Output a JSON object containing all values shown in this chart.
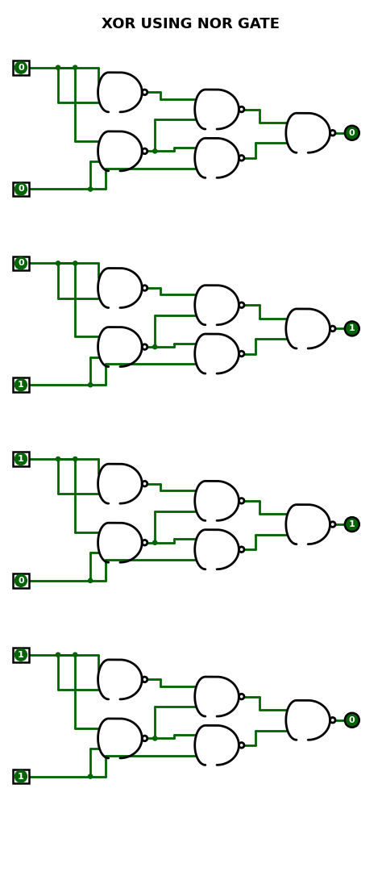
{
  "title": "XOR USING NOR GATE",
  "bg_color": "#ffffff",
  "line_color": "#006400",
  "gate_color": "#000000",
  "input_bg": "#006400",
  "input_text_color": "#ffffff",
  "output_bg": "#006400",
  "output_text_color": "#ffffff",
  "truth_table": [
    {
      "A": 0,
      "B": 0,
      "out": 0
    },
    {
      "A": 0,
      "B": 1,
      "out": 1
    },
    {
      "A": 1,
      "B": 0,
      "out": 1
    },
    {
      "A": 1,
      "B": 1,
      "out": 0
    }
  ],
  "fig_width": 4.74,
  "fig_height": 10.91,
  "dpi": 100,
  "lw": 2.0,
  "dot_r": 0.055,
  "bubble_r": 0.07,
  "gate_scale": 1.0
}
